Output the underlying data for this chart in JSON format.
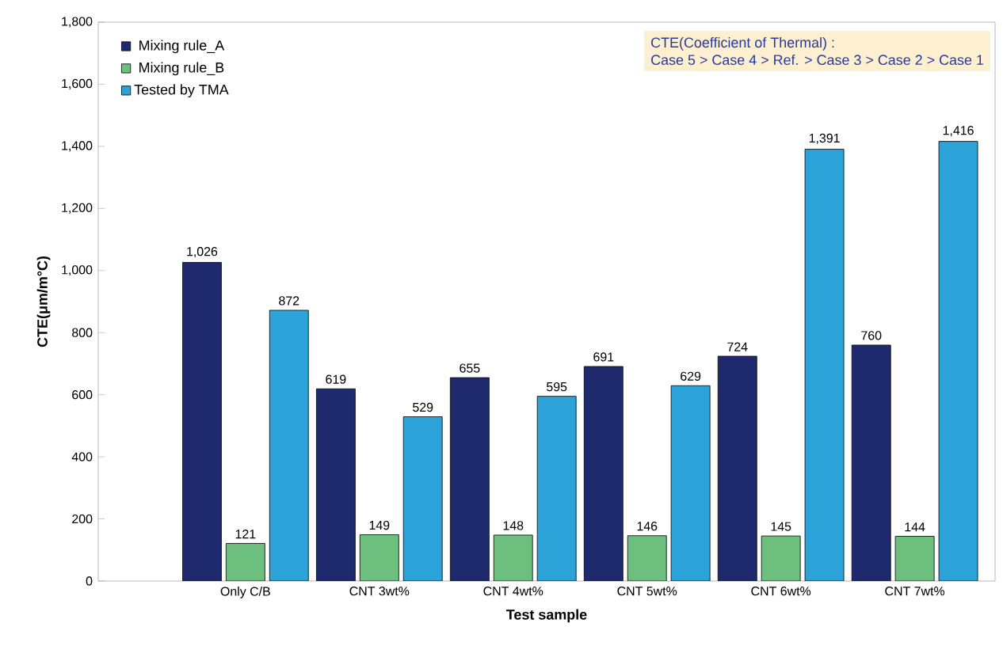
{
  "chart_data": {
    "type": "bar",
    "xlabel": "Test sample",
    "ylabel": "CTE(μm/m°C)",
    "categories": [
      "Only C/B",
      "CNT 3wt%",
      "CNT 4wt%",
      "CNT 5wt%",
      "CNT 6wt%",
      "CNT 7wt%"
    ],
    "series": [
      {
        "name": "Mixing rule_A",
        "color": "#1f2a6e",
        "values": [
          1026,
          619,
          655,
          691,
          724,
          760
        ],
        "value_labels": [
          "1,026",
          "619",
          "655",
          "691",
          "724",
          "760"
        ]
      },
      {
        "name": "Mixing rule_B",
        "color": "#6cbf7c",
        "values": [
          121,
          149,
          148,
          146,
          145,
          144
        ],
        "value_labels": [
          "121",
          "149",
          "148",
          "146",
          "145",
          "144"
        ]
      },
      {
        "name": "Tested by TMA",
        "color": "#2ba3d8",
        "values": [
          872,
          529,
          595,
          629,
          1391,
          1416
        ],
        "value_labels": [
          "872",
          "529",
          "595",
          "629",
          "1,391",
          "1,416"
        ]
      }
    ],
    "ylim": [
      0,
      1800
    ],
    "yticks": [
      0,
      200,
      400,
      600,
      800,
      {
        "value": 1000,
        "label": "1,000"
      },
      {
        "value": 1200,
        "label": "1,200"
      },
      {
        "value": 1400,
        "label": "1,400"
      },
      {
        "value": 1600,
        "label": "1,600"
      },
      {
        "value": 1800,
        "label": "1,800"
      }
    ],
    "legend": "top left",
    "grid": false,
    "annotations": [
      "CTE(Coefficient of Thermal) :",
      "Case 5 > Case 4 > Ref. > Case 3 > Case 2 > Case 1"
    ]
  }
}
